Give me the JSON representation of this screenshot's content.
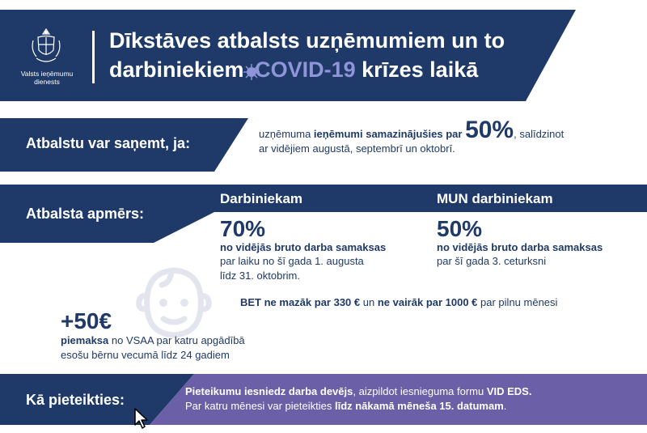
{
  "header": {
    "org_name_line1": "Valsts ieņēmumu",
    "org_name_line2": "dienests",
    "title_line1": "Dīkstāves atbalsts uzņēmumiem un to",
    "title_line2_pre": "darbiniekiem ",
    "title_line2_covid": "COVID-19",
    "title_line2_post": " krīzes laikā"
  },
  "eligibility": {
    "heading": "Atbalstu var saņemt, ja:",
    "text_a": "uzņēmuma ",
    "text_b": "ieņēmumi samazinājušies par ",
    "percent": "50%",
    "text_c": ", salīdzinot",
    "text_line2": "ar vidējiem augustā, septembrī un oktobrī."
  },
  "amount": {
    "heading": "Atbalsta apmērs:",
    "employee": {
      "title": "Darbiniekam",
      "percent": "70%",
      "subtitle": "no vidējās bruto darba samaksas",
      "period_line1": "par laiku no šī gada 1. augusta",
      "period_line2": "līdz 31. oktobrim."
    },
    "mun_employee": {
      "title": "MUN darbiniekam",
      "percent": "50%",
      "subtitle": "no vidējās bruto darba samaksas",
      "period_line1": "par šī gada 3. ceturksni"
    },
    "limit": {
      "bet": "BET",
      "min_text": " ne mazāk par 330 €",
      "and": " un ",
      "max_text": "ne vairāk par 1000 €",
      "tail": " par pilnu mēnesi"
    },
    "bonus": {
      "amount": "+50€",
      "bold": "piemaksa",
      "text_line1": " no VSAA par katru apgādībā",
      "text_line2": "esošu bērnu vecumā līdz 24 gadiem"
    }
  },
  "apply": {
    "heading": "Kā pieteikties:",
    "line1_bold": "Pieteikumu iesniedz darba devējs",
    "line1_mid": ", aizpildot iesnieguma formu ",
    "line1_bold2": "VID EDS.",
    "line2_pre": "Par katru mēnesi var pieteikties ",
    "line2_bold": "līdz nākamā mēneša 15. datumam",
    "line2_post": "."
  },
  "colors": {
    "navy": "#1f3a68",
    "purple": "#6b5fa8",
    "covid": "#8e95d9"
  }
}
